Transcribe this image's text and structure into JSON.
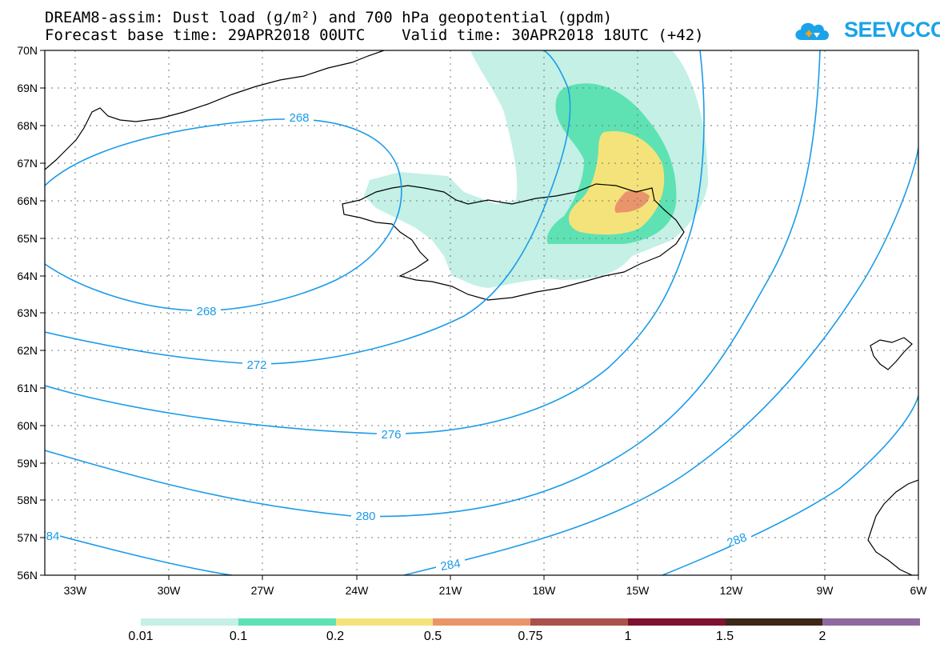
{
  "header": {
    "title_line1": "DREAM8-assim: Dust load (g/m²) and 700 hPa geopotential (gpdm)",
    "title_line2": "Forecast base time: 29APR2018 00UTC    Valid time: 30APR2018 18UTC (+42)"
  },
  "logo": {
    "text": "SEEVCCC",
    "icon": "cloud-logo-icon",
    "color": "#1aa3e8"
  },
  "map": {
    "lat_labels": [
      "70N",
      "69N",
      "68N",
      "67N",
      "66N",
      "65N",
      "64N",
      "63N",
      "62N",
      "61N",
      "60N",
      "59N",
      "58N",
      "57N",
      "56N"
    ],
    "lon_labels": [
      "33W",
      "30W",
      "27W",
      "24W",
      "21W",
      "18W",
      "15W",
      "12W",
      "9W",
      "6W"
    ],
    "contour_labels": [
      "268",
      "268",
      "272",
      "276",
      "280",
      "284",
      "288",
      "84"
    ],
    "contour_color": "#1a9be8",
    "coast_color": "#000000"
  },
  "legend": {
    "colors": [
      "#c4f0e6",
      "#5ee2b3",
      "#f4e37a",
      "#e9946b",
      "#a8524b",
      "#7e1130",
      "#3d2716",
      "#8e6aa0"
    ],
    "labels": [
      "0.01",
      "0.1",
      "0.2",
      "0.5",
      "0.75",
      "1",
      "1.5",
      "2"
    ]
  }
}
